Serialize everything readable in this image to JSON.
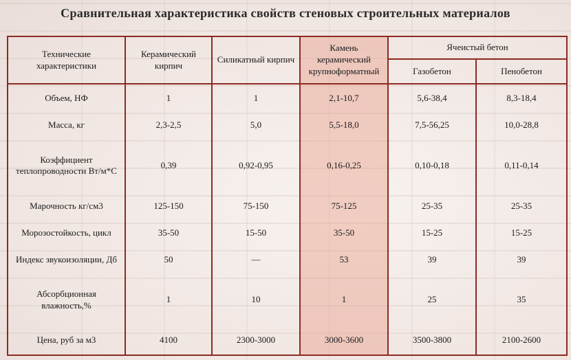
{
  "title": "Сравнительная характеристика свойств стеновых строительных материалов",
  "headers": {
    "characteristics": "Технические характеристики",
    "ceramic_brick": "Керамический кирпич",
    "silicate_brick": "Силикатный кирпич",
    "ceramic_stone": "Камень керамический крупноформатный",
    "cellular_concrete": "Ячеистый бетон",
    "gas_concrete": "Газобетон",
    "foam_concrete": "Пенобетон"
  },
  "rows": [
    {
      "label": "Объем, НФ",
      "values": [
        "1",
        "1",
        "2,1-10,7",
        "5,6-38,4",
        "8,3-18,4"
      ]
    },
    {
      "label": "Масса, кг",
      "values": [
        "2,3-2,5",
        "5,0",
        "5,5-18,0",
        "7,5-56,25",
        "10,0-28,8"
      ]
    },
    {
      "label": "Коэффициент теплопроводности Вт/м*С",
      "values": [
        "0,39",
        "0,92-0,95",
        "0,16-0,25",
        "0,10-0,18",
        "0,11-0,14"
      ]
    },
    {
      "label": "Марочность кг/см3",
      "values": [
        "125-150",
        "75-150",
        "75-125",
        "25-35",
        "25-35"
      ]
    },
    {
      "label": "Морозостойкость, цикл",
      "values": [
        "35-50",
        "15-50",
        "35-50",
        "15-25",
        "15-25"
      ]
    },
    {
      "label": "Индекс звукоизоляции, Дб",
      "values": [
        "50",
        "—",
        "53",
        "39",
        "39"
      ]
    },
    {
      "label": "Абсорбционная влажность,%",
      "values": [
        "1",
        "10",
        "1",
        "25",
        "35"
      ]
    },
    {
      "label": "Цена, руб за м3",
      "values": [
        "4100",
        "2300-3000",
        "3000-3600",
        "3500-3800",
        "2100-2600"
      ]
    }
  ],
  "colors": {
    "border": "#8c2a23",
    "highlight": "#e8a08c"
  }
}
